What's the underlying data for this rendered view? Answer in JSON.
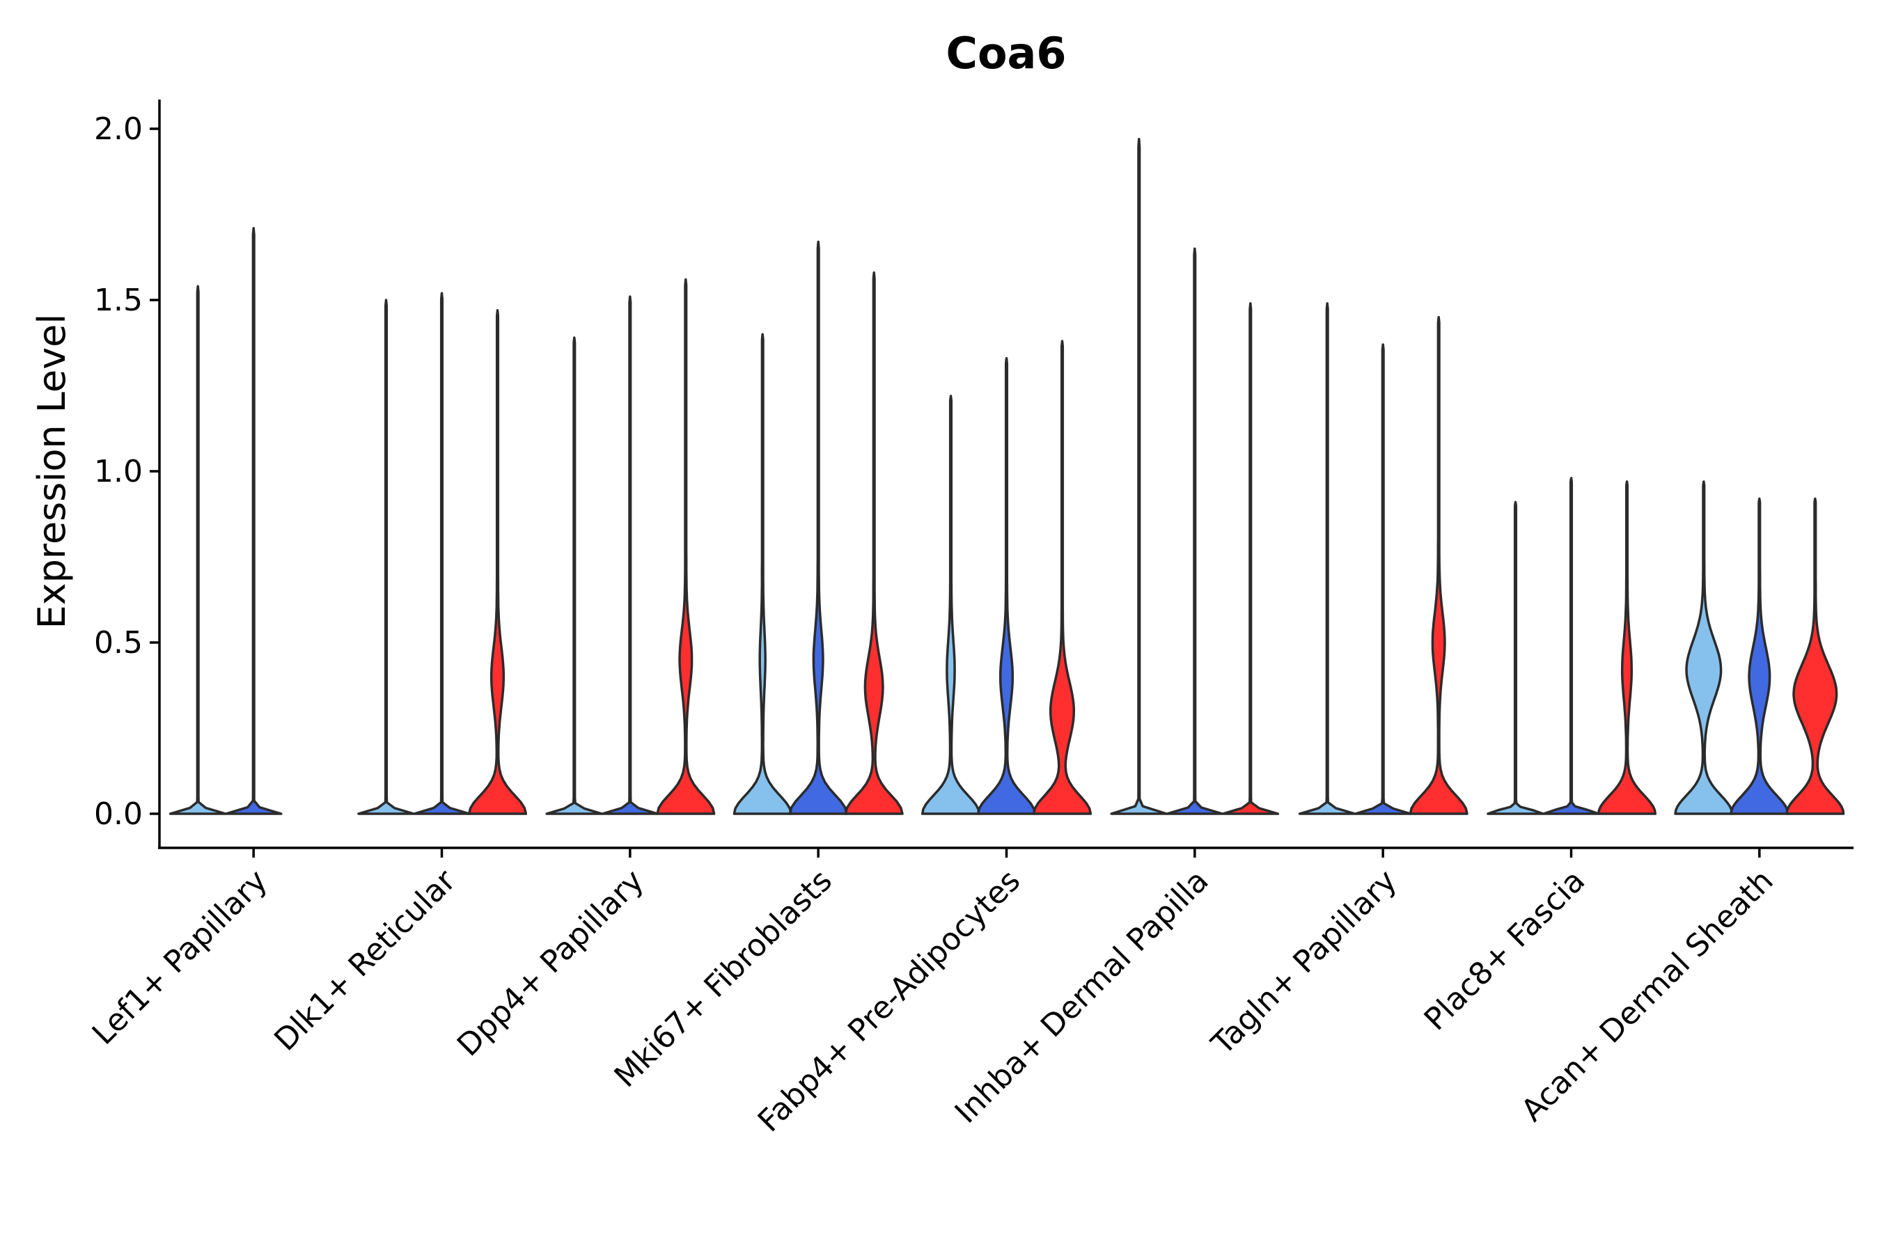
{
  "chart_data": {
    "type": "violin",
    "title": "Coa6",
    "xlabel": "",
    "ylabel": "Expression Level",
    "ylim": [
      -0.1,
      2.07
    ],
    "yticks": [
      0.0,
      0.5,
      1.0,
      1.5,
      2.0
    ],
    "ytick_labels": [
      "0.0",
      "0.5",
      "1.0",
      "1.5",
      "2.0"
    ],
    "categories": [
      "Lef1+ Papillary",
      "Dlk1+ Reticular",
      "Dpp4+ Papillary",
      "Mki67+ Fibroblasts",
      "Fabp4+ Pre-Adipocytes",
      "Inhba+ Dermal Papilla",
      "Tagln+ Papillary",
      "Plac8+ Fascia",
      "Acan+ Dermal Sheath"
    ],
    "series_colors": [
      "#85c1ec",
      "#4169e1",
      "#ff2f2f"
    ],
    "groups": [
      {
        "violins": [
          {
            "color": "#85c1ec",
            "max": 1.54,
            "shape": "spike"
          },
          {
            "color": "#4169e1",
            "max": 1.71,
            "shape": "spike"
          }
        ]
      },
      {
        "violins": [
          {
            "color": "#85c1ec",
            "max": 1.5,
            "shape": "spike"
          },
          {
            "color": "#4169e1",
            "max": 1.52,
            "shape": "spike"
          },
          {
            "color": "#ff2f2f",
            "max": 1.47,
            "shape": "bimodal",
            "mode": 0.4,
            "mode_width": 0.2
          }
        ]
      },
      {
        "violins": [
          {
            "color": "#85c1ec",
            "max": 1.39,
            "shape": "spike"
          },
          {
            "color": "#4169e1",
            "max": 1.51,
            "shape": "spike"
          },
          {
            "color": "#ff2f2f",
            "max": 1.56,
            "shape": "bimodal",
            "mode": 0.45,
            "mode_width": 0.2
          }
        ]
      },
      {
        "violins": [
          {
            "color": "#85c1ec",
            "max": 1.4,
            "shape": "bimodal",
            "mode": 0.45,
            "mode_width": 0.08
          },
          {
            "color": "#4169e1",
            "max": 1.67,
            "shape": "bimodal",
            "mode": 0.45,
            "mode_width": 0.15
          },
          {
            "color": "#ff2f2f",
            "max": 1.58,
            "shape": "bimodal",
            "mode": 0.37,
            "mode_width": 0.3
          }
        ]
      },
      {
        "violins": [
          {
            "color": "#85c1ec",
            "max": 1.22,
            "shape": "bimodal",
            "mode": 0.42,
            "mode_width": 0.12
          },
          {
            "color": "#4169e1",
            "max": 1.33,
            "shape": "bimodal",
            "mode": 0.4,
            "mode_width": 0.2
          },
          {
            "color": "#ff2f2f",
            "max": 1.38,
            "shape": "bimodal",
            "mode": 0.3,
            "mode_width": 0.4
          }
        ]
      },
      {
        "violins": [
          {
            "color": "#85c1ec",
            "max": 1.97,
            "shape": "spike"
          },
          {
            "color": "#4169e1",
            "max": 1.65,
            "shape": "spike"
          },
          {
            "color": "#ff2f2f",
            "max": 1.49,
            "shape": "spike"
          }
        ]
      },
      {
        "violins": [
          {
            "color": "#85c1ec",
            "max": 1.49,
            "shape": "spike"
          },
          {
            "color": "#4169e1",
            "max": 1.37,
            "shape": "spike"
          },
          {
            "color": "#ff2f2f",
            "max": 1.45,
            "shape": "bimodal",
            "mode": 0.5,
            "mode_width": 0.2
          }
        ]
      },
      {
        "violins": [
          {
            "color": "#85c1ec",
            "max": 0.91,
            "shape": "spike"
          },
          {
            "color": "#4169e1",
            "max": 0.98,
            "shape": "spike"
          },
          {
            "color": "#ff2f2f",
            "max": 0.97,
            "shape": "bimodal",
            "mode": 0.42,
            "mode_width": 0.15
          }
        ]
      },
      {
        "violins": [
          {
            "color": "#85c1ec",
            "max": 0.97,
            "shape": "bimodal",
            "mode": 0.42,
            "mode_width": 0.6
          },
          {
            "color": "#4169e1",
            "max": 0.92,
            "shape": "bimodal",
            "mode": 0.4,
            "mode_width": 0.35
          },
          {
            "color": "#ff2f2f",
            "max": 0.92,
            "shape": "bimodal",
            "mode": 0.35,
            "mode_width": 0.75
          }
        ]
      }
    ]
  }
}
